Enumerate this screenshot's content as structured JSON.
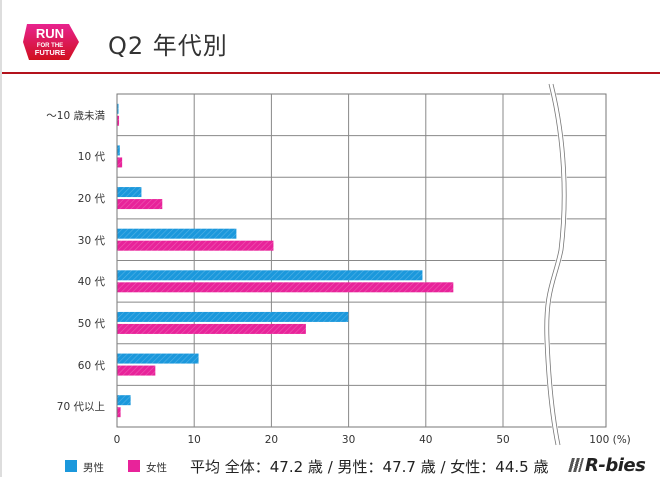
{
  "header": {
    "logo": {
      "line1": "RUN",
      "line2": "FOR THE",
      "line3": "FUTURE"
    },
    "title": "Q2 年代別",
    "accent_color": "#b3121c"
  },
  "legend": {
    "male": {
      "label": "男性",
      "color": "#1b98dc"
    },
    "female": {
      "label": "女性",
      "color": "#e8239a"
    }
  },
  "average_text": "平均 全体：47.2 歳 / 男性：47.7 歳 / 女性：44.5 歳",
  "brand": "R-bies",
  "axis": {
    "ticks": [
      "0",
      "10",
      "20",
      "30",
      "40",
      "50",
      "100 (%)"
    ]
  },
  "chart_data": {
    "type": "bar",
    "orientation": "horizontal",
    "title": "Q2 年代別",
    "xlabel": "(%)",
    "ylabel": "",
    "categories": [
      "～10 歳未満",
      "10 代",
      "20 代",
      "30 代",
      "40 代",
      "50 代",
      "60 代",
      "70 代以上"
    ],
    "series": [
      {
        "name": "男性",
        "color": "#1b98dc",
        "values": [
          0.0,
          0.3,
          3.1,
          15.4,
          39.5,
          29.9,
          10.5,
          1.7
        ]
      },
      {
        "name": "女性",
        "color": "#e8239a",
        "values": [
          0.2,
          0.6,
          5.8,
          20.2,
          43.5,
          24.4,
          4.9,
          0.4
        ]
      }
    ],
    "xlim": [
      0,
      100
    ],
    "axis_break": "between 50 and 100",
    "x_ticks": [
      0,
      10,
      20,
      30,
      40,
      50,
      100
    ],
    "grid": true,
    "legend_position": "bottom-left",
    "annotation": "平均 全体：47.2 歳 / 男性：47.7 歳 / 女性：44.5 歳"
  }
}
